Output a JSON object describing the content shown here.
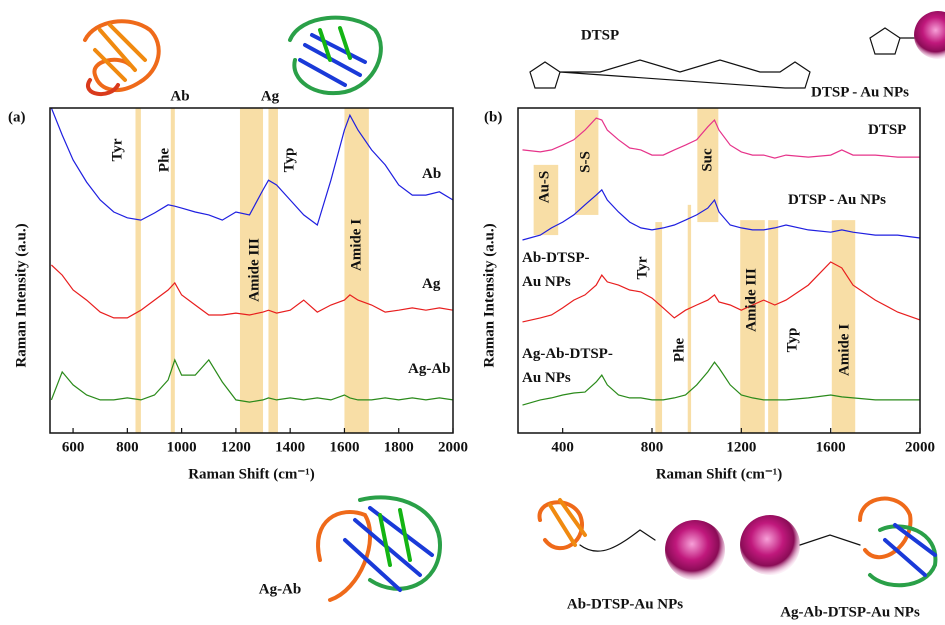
{
  "chart_data": [
    {
      "type": "line",
      "title": "(a)",
      "x_label": "Raman Shift (cm⁻¹)",
      "y_label": "Raman Intensity (a.u.)",
      "x": [
        520,
        560,
        600,
        650,
        700,
        750,
        800,
        850,
        900,
        950,
        975,
        1000,
        1050,
        1100,
        1150,
        1200,
        1250,
        1300,
        1320,
        1350,
        1400,
        1450,
        1500,
        1550,
        1600,
        1620,
        1650,
        1700,
        1750,
        1800,
        1850,
        1900,
        1950,
        2000
      ],
      "series": [
        {
          "name": "Ab",
          "color": "#1f1fe0",
          "values": [
            100,
            91.7,
            84,
            77.2,
            71.7,
            68,
            66.2,
            65.5,
            67.7,
            70.2,
            69.8,
            69.2,
            68,
            67.1,
            65.5,
            68,
            67.1,
            74.8,
            77.8,
            76.3,
            71.7,
            67.1,
            64,
            77.8,
            93.2,
            97.8,
            93.2,
            87.1,
            82.5,
            76.3,
            73.2,
            73.2,
            74.2,
            71.7
          ]
        },
        {
          "name": "Ag",
          "color": "#e81e1e",
          "values": [
            51.7,
            48.6,
            44,
            40.9,
            37.2,
            35.4,
            35.4,
            37.8,
            40.9,
            44,
            46.2,
            42.5,
            39.4,
            36.3,
            36.3,
            36.9,
            36.3,
            37.2,
            37.8,
            36.9,
            37.8,
            40.9,
            37.2,
            39.4,
            40.9,
            42.5,
            40.9,
            39.4,
            37.2,
            37.8,
            38.5,
            37.8,
            38.5,
            37.8
          ]
        },
        {
          "name": "Ag-Ab",
          "color": "#2a8a1a",
          "values": [
            10.2,
            18.8,
            14.8,
            11.7,
            10.2,
            10.2,
            10.8,
            10.2,
            11.7,
            16.3,
            22.5,
            17.8,
            17.8,
            22.5,
            15.7,
            10.2,
            9.5,
            10.2,
            10.8,
            10.2,
            10.8,
            10.2,
            10.8,
            10.2,
            11.7,
            10.8,
            10.2,
            10.2,
            10.8,
            10.2,
            10.8,
            10.2,
            10.8,
            10.2
          ]
        }
      ],
      "bands": [
        {
          "label": "Tyr",
          "x": [
            830,
            850
          ]
        },
        {
          "label": "Phe",
          "x": [
            960,
            975
          ]
        },
        {
          "label": "Amide III",
          "x": [
            1215,
            1300
          ]
        },
        {
          "label": "Typ",
          "x": [
            1320,
            1355
          ]
        },
        {
          "label": "Amide I",
          "x": [
            1600,
            1690
          ]
        }
      ],
      "xlim": [
        515,
        2000
      ],
      "ylim": [
        0,
        100
      ],
      "xticks": [
        600,
        800,
        1000,
        1200,
        1400,
        1600,
        1800,
        2000
      ]
    },
    {
      "type": "line",
      "title": "(b)",
      "x_label": "Raman Shift (cm⁻¹)",
      "y_label": "Raman Intensity (a.u.)",
      "x": [
        220,
        300,
        350,
        400,
        450,
        500,
        550,
        575,
        600,
        650,
        700,
        750,
        800,
        850,
        900,
        950,
        1000,
        1050,
        1080,
        1100,
        1150,
        1200,
        1250,
        1300,
        1350,
        1400,
        1500,
        1600,
        1650,
        1700,
        1800,
        1900,
        2000
      ],
      "series": [
        {
          "name": "DTSP",
          "color": "#e6338a",
          "values": [
            87.1,
            86.5,
            87.1,
            88.6,
            90.2,
            93.2,
            96.9,
            96.3,
            93.2,
            90.2,
            87.7,
            87.1,
            85.5,
            85.5,
            87.1,
            88.6,
            90.2,
            94.2,
            96.3,
            93.2,
            88.6,
            86.5,
            85.5,
            85.5,
            84.6,
            85.5,
            84.9,
            85.5,
            87.1,
            85.5,
            85.5,
            84.9,
            84.9
          ]
        },
        {
          "name": "DTSP - Au NPs",
          "color": "#1f1fe0",
          "values": [
            59.4,
            60.9,
            63.1,
            64.9,
            67.1,
            70.2,
            73.2,
            74.8,
            71.7,
            68,
            64.9,
            63.1,
            62.5,
            63.1,
            64,
            65.5,
            67.1,
            69.2,
            71.7,
            68,
            64,
            63.1,
            62.5,
            62.5,
            63.1,
            64,
            62.5,
            61.8,
            62.5,
            61.8,
            60.9,
            60.9,
            60
          ]
        },
        {
          "name": "Ab-DTSP-\nAu NPs",
          "color": "#e81e1e",
          "values": [
            34.2,
            35.4,
            36.3,
            38.5,
            40.9,
            42.5,
            45.5,
            48.6,
            46.5,
            45.5,
            44,
            43.4,
            41.5,
            38.5,
            35.4,
            37.8,
            39.4,
            40.9,
            42.5,
            40.3,
            39.4,
            37.8,
            39.4,
            40.9,
            39.4,
            40.9,
            45.5,
            52.6,
            50.8,
            45.5,
            40.9,
            37.2,
            34.8
          ]
        },
        {
          "name": "Ag-Ab-DTSP-\nAu NPs",
          "color": "#2a8a1a",
          "values": [
            8.6,
            10.2,
            10.8,
            11.7,
            12.3,
            12.6,
            15.7,
            17.8,
            14.8,
            11.7,
            10.8,
            10.8,
            10.2,
            10.2,
            10.8,
            11.7,
            14.8,
            18.8,
            21.8,
            20,
            14.8,
            11.7,
            10.8,
            10.2,
            10.2,
            10.2,
            10.8,
            11.7,
            11.1,
            10.8,
            10.2,
            10.2,
            10.2
          ]
        }
      ],
      "bands": [
        {
          "label": "Au-S",
          "x": [
            270,
            380
          ],
          "y": [
            60.9,
            82.5
          ]
        },
        {
          "label": "S-S",
          "x": [
            455,
            560
          ],
          "y": [
            67.1,
            99.4
          ]
        },
        {
          "label": "Suc",
          "x": [
            1003,
            1097
          ],
          "y": [
            64.9,
            100
          ]
        },
        {
          "label": "Tyr",
          "x": [
            815,
            845
          ],
          "y": [
            0,
            64.9
          ]
        },
        {
          "label": "Phe",
          "x": [
            960,
            975
          ],
          "y": [
            0,
            70.2
          ]
        },
        {
          "label": "Amide III",
          "x": [
            1195,
            1305
          ],
          "y": [
            0,
            65.5
          ]
        },
        {
          "label": "Typ",
          "x": [
            1320,
            1365
          ],
          "y": [
            0,
            65.5
          ]
        },
        {
          "label": "Amide I",
          "x": [
            1605,
            1710
          ],
          "y": [
            0,
            65.5
          ]
        }
      ],
      "xlim": [
        200,
        2000
      ],
      "ylim": [
        0,
        100
      ],
      "xticks": [
        400,
        800,
        1200,
        1600,
        2000
      ]
    }
  ],
  "illustrations": {
    "labels": [
      "Ab",
      "Ag",
      "DTSP",
      "DTSP - Au NPs",
      "Ag-Ab",
      "Ab-DTSP-Au NPs",
      "Ag-Ab-DTSP-Au NPs"
    ]
  }
}
